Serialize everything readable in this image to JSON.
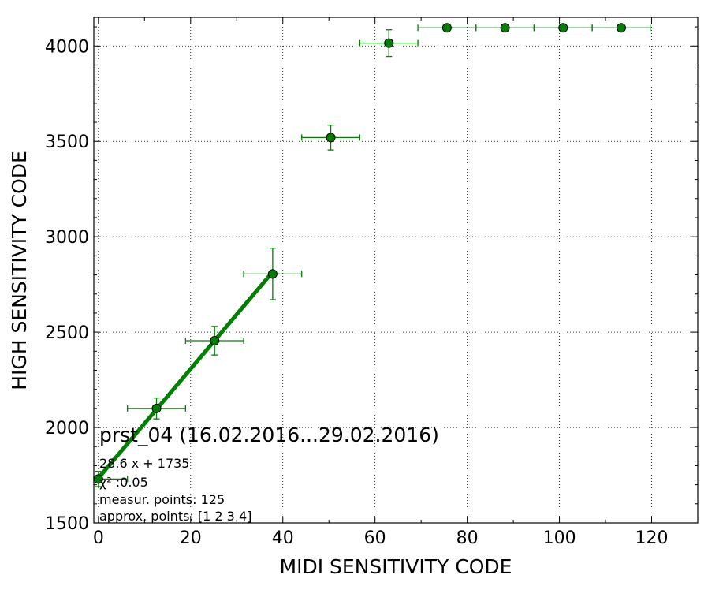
{
  "chart_data": {
    "type": "scatter",
    "title": "",
    "xlabel": "MIDI SENSITIVITY CODE",
    "ylabel": "HIGH SENSITIVITY CODE",
    "xlim": [
      -1,
      130
    ],
    "ylim": [
      1500,
      4150
    ],
    "xticks": [
      0,
      20,
      40,
      60,
      80,
      100,
      120
    ],
    "yticks": [
      1500,
      2000,
      2500,
      3000,
      3500,
      4000
    ],
    "grid": true,
    "series": [
      {
        "type": "errorbar",
        "color": "#008000",
        "x": [
          0,
          12.6,
          25.2,
          37.8,
          50.4,
          63,
          75.6,
          88.2,
          100.8,
          113.4
        ],
        "y": [
          1730,
          2100,
          2455,
          2805,
          3520,
          4015,
          4095,
          4095,
          4095,
          4095
        ],
        "xerr": [
          6.3,
          6.3,
          6.3,
          6.3,
          6.3,
          6.3,
          6.3,
          6.3,
          6.3,
          6.3
        ],
        "yerr": [
          40,
          55,
          75,
          135,
          65,
          70,
          0,
          0,
          0,
          0
        ]
      },
      {
        "type": "line",
        "color": "#008000",
        "x": [
          0,
          37.8
        ],
        "y": [
          1735,
          2816
        ]
      }
    ],
    "annotations": {
      "title": "prst_04 (16.02.2016...29.02.2016)",
      "fit": "28.6 x + 1735",
      "chi2": "χ² :0.05",
      "measur_points": "measur. points: 125",
      "approx_points": "approx. points: [1 2 3 4]"
    }
  }
}
